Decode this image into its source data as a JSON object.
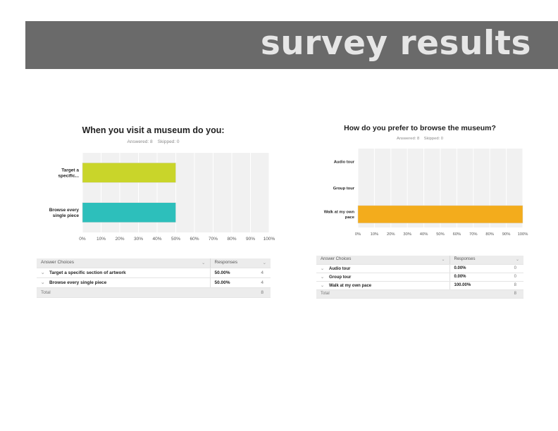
{
  "banner": {
    "title": "survey results"
  },
  "surveys": [
    {
      "title": "When you visit a museum do you:",
      "meta": "Answered: 8    Skipped: 0",
      "table": {
        "headers": [
          "Answer Choices",
          "Responses"
        ],
        "rows": [
          {
            "choice": "Target a specific section of artwork",
            "pct": "50.00%",
            "count": "4"
          },
          {
            "choice": "Browse every single piece",
            "pct": "50.00%",
            "count": "4"
          }
        ],
        "total_label": "Total",
        "total_count": "8"
      }
    },
    {
      "title": "How do you prefer to browse the museum?",
      "meta": "Answered: 8    Skipped: 0",
      "table": {
        "headers": [
          "Answer Choices",
          "Responses"
        ],
        "rows": [
          {
            "choice": "Audio tour",
            "pct": "0.00%",
            "count": "0"
          },
          {
            "choice": "Group tour",
            "pct": "0.00%",
            "count": "0"
          },
          {
            "choice": "Walk at my own pace",
            "pct": "100.00%",
            "count": "8"
          }
        ],
        "total_label": "Total",
        "total_count": "8"
      }
    }
  ],
  "chart_data": [
    {
      "type": "bar",
      "orientation": "horizontal",
      "title": "When you visit a museum do you:",
      "categories": [
        [
          "Target a",
          "specific..."
        ],
        [
          "Browse every",
          "single piece"
        ]
      ],
      "values": [
        50,
        50
      ],
      "colors": [
        "#c9d52a",
        "#2dbfbb"
      ],
      "xlim": [
        0,
        100
      ],
      "xticks": [
        "0%",
        "10%",
        "20%",
        "30%",
        "40%",
        "50%",
        "60%",
        "70%",
        "80%",
        "90%",
        "100%"
      ],
      "grid": true
    },
    {
      "type": "bar",
      "orientation": "horizontal",
      "title": "How do you prefer to browse the museum?",
      "categories": [
        [
          "Audio tour"
        ],
        [
          "Group tour"
        ],
        [
          "Walk at my own",
          "pace"
        ]
      ],
      "values": [
        0,
        0,
        100
      ],
      "colors": [
        "#f3ac1c",
        "#f3ac1c",
        "#f3ac1c"
      ],
      "xlim": [
        0,
        100
      ],
      "xticks": [
        "0%",
        "10%",
        "20%",
        "30%",
        "40%",
        "50%",
        "60%",
        "70%",
        "80%",
        "90%",
        "100%"
      ],
      "grid": true
    }
  ]
}
